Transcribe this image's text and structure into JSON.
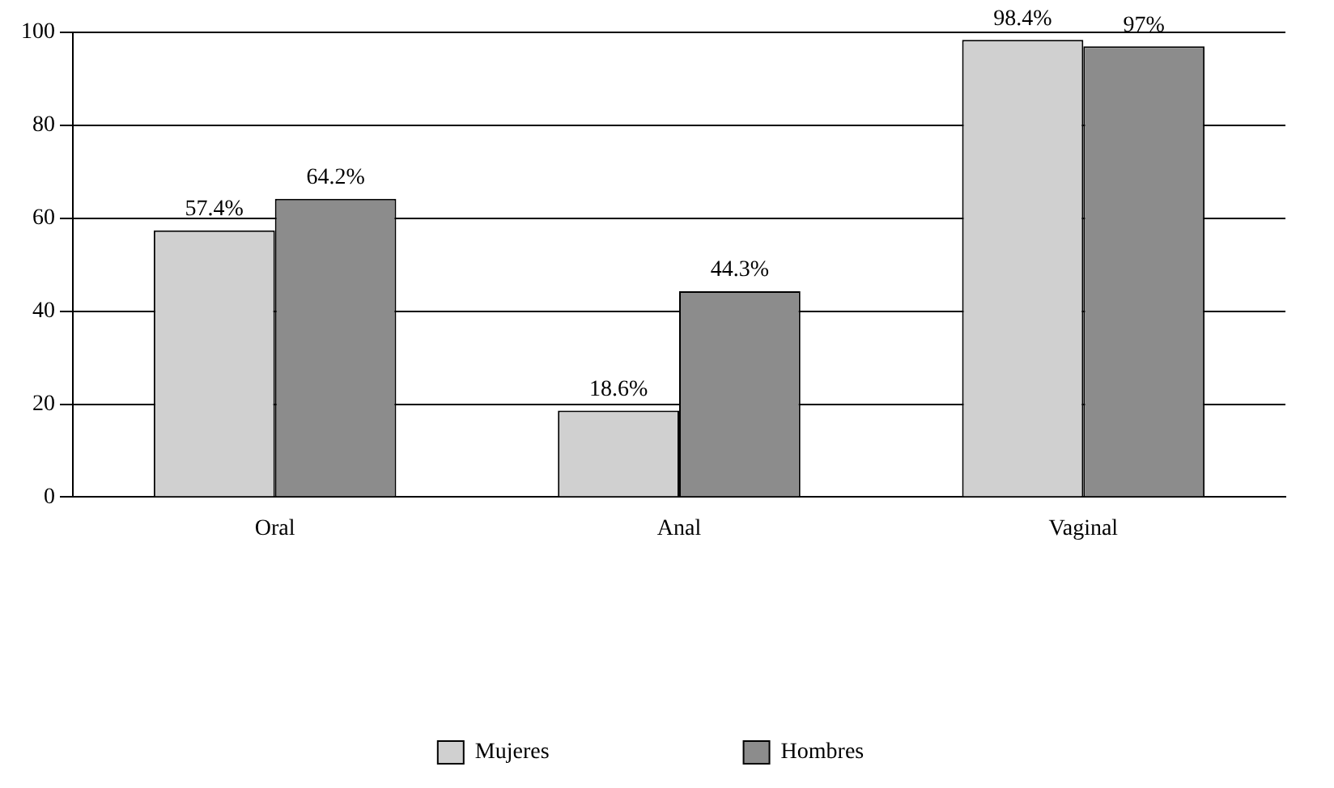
{
  "chart_data": {
    "type": "bar",
    "categories": [
      "Oral",
      "Anal",
      "Vaginal"
    ],
    "series": [
      {
        "name": "Mujeres",
        "color": "#d0d0d0",
        "values": [
          57.4,
          18.6,
          98.4
        ],
        "value_labels": [
          "57.4%",
          "18.6%",
          "98.4%"
        ]
      },
      {
        "name": "Hombres",
        "color": "#8c8c8c",
        "values": [
          64.2,
          44.3,
          97
        ],
        "value_labels": [
          "64.2%",
          "44.3%",
          "97%"
        ]
      }
    ],
    "ylim": [
      0,
      100
    ],
    "yticks": [
      0,
      20,
      40,
      60,
      80,
      100
    ],
    "grid": "y",
    "legend": "bottom"
  }
}
